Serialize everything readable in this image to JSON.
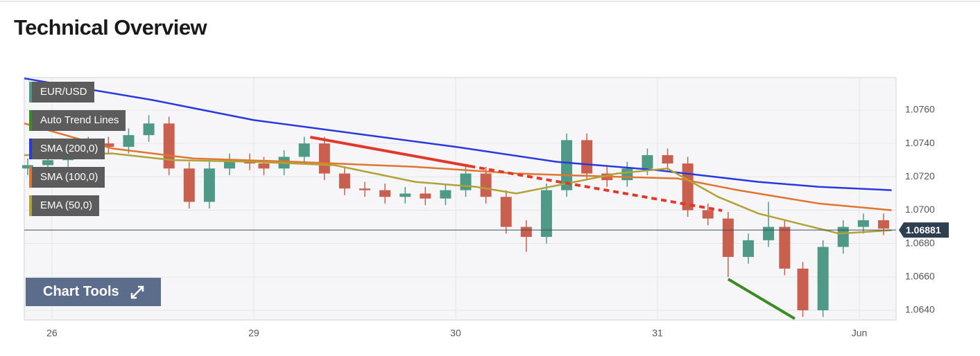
{
  "header": {
    "title": "Technical Overview"
  },
  "chart_tools": "Chart Tools",
  "chart_data": {
    "type": "candlestick",
    "name": "EUR/USD",
    "up_color": "#4f9a86",
    "down_color": "#c9604f",
    "grid": true,
    "xlim": [
      -0.137,
      4.182
    ],
    "xticks": [
      {
        "value": 0,
        "label": "26"
      },
      {
        "value": 1,
        "label": "29"
      },
      {
        "value": 2,
        "label": "30"
      },
      {
        "value": 3,
        "label": "31"
      },
      {
        "value": 4,
        "label": "Jun"
      }
    ],
    "ylim": [
      1.06342,
      1.07795
    ],
    "yticks": [
      {
        "value": 1.064,
        "label": "1.0640"
      },
      {
        "value": 1.066,
        "label": "1.0660"
      },
      {
        "value": 1.068,
        "label": "1.0680"
      },
      {
        "value": 1.07,
        "label": "1.0700"
      },
      {
        "value": 1.072,
        "label": "1.0720"
      },
      {
        "value": 1.074,
        "label": "1.0740"
      },
      {
        "value": 1.076,
        "label": "1.0760"
      }
    ],
    "x": [
      -0.12,
      -0.02,
      0.08,
      0.18,
      0.28,
      0.38,
      0.48,
      0.58,
      0.68,
      0.78,
      0.88,
      0.98,
      1.05,
      1.15,
      1.25,
      1.35,
      1.45,
      1.55,
      1.65,
      1.75,
      1.85,
      1.95,
      2.05,
      2.15,
      2.25,
      2.35,
      2.45,
      2.55,
      2.65,
      2.75,
      2.85,
      2.95,
      3.05,
      3.15,
      3.25,
      3.35,
      3.45,
      3.55,
      3.63,
      3.72,
      3.82,
      3.92,
      4.02,
      4.12
    ],
    "open": [
      1.0725,
      1.0727,
      1.073,
      1.0735,
      1.074,
      1.0738,
      1.0745,
      1.0752,
      1.0725,
      1.0705,
      1.0725,
      1.073,
      1.0728,
      1.0725,
      1.0732,
      1.074,
      1.0722,
      1.0713,
      1.0712,
      1.0708,
      1.071,
      1.0707,
      1.0712,
      1.0722,
      1.0708,
      1.069,
      1.0684,
      1.0712,
      1.0742,
      1.0722,
      1.0718,
      1.0725,
      1.0733,
      1.0728,
      1.07,
      1.0695,
      1.0672,
      1.0682,
      1.069,
      1.0665,
      1.064,
      1.0678,
      1.069,
      1.0694
    ],
    "high": [
      1.0731,
      1.0734,
      1.0739,
      1.0744,
      1.0744,
      1.0749,
      1.0757,
      1.0756,
      1.0729,
      1.0729,
      1.0734,
      1.0734,
      1.0732,
      1.0736,
      1.0744,
      1.0744,
      1.0726,
      1.0717,
      1.0716,
      1.0714,
      1.0714,
      1.0716,
      1.0726,
      1.0726,
      1.0712,
      1.0694,
      1.0716,
      1.0746,
      1.0746,
      1.0726,
      1.0729,
      1.0737,
      1.0737,
      1.0732,
      1.0704,
      1.0699,
      1.0686,
      1.0705,
      1.0694,
      1.0669,
      1.0682,
      1.0694,
      1.0698,
      1.0698
    ],
    "low": [
      1.0721,
      1.0723,
      1.0726,
      1.0731,
      1.0734,
      1.0734,
      1.0741,
      1.0721,
      1.0701,
      1.0701,
      1.0721,
      1.0724,
      1.0721,
      1.0721,
      1.0728,
      1.0718,
      1.0709,
      1.0708,
      1.0704,
      1.0704,
      1.0703,
      1.0703,
      1.0708,
      1.0704,
      1.0686,
      1.0675,
      1.068,
      1.0708,
      1.0718,
      1.0714,
      1.0714,
      1.0721,
      1.0724,
      1.0696,
      1.0691,
      1.066,
      1.0668,
      1.0678,
      1.0661,
      1.0636,
      1.0636,
      1.0674,
      1.0686,
      1.0685
    ],
    "close": [
      1.0727,
      1.073,
      1.0735,
      1.074,
      1.0738,
      1.0745,
      1.0752,
      1.0725,
      1.0705,
      1.0725,
      1.073,
      1.0728,
      1.0725,
      1.0732,
      1.074,
      1.0722,
      1.0713,
      1.0712,
      1.0708,
      1.071,
      1.0707,
      1.0712,
      1.0722,
      1.0708,
      1.069,
      1.0684,
      1.0712,
      1.0742,
      1.0722,
      1.0718,
      1.0725,
      1.0733,
      1.0728,
      1.07,
      1.0695,
      1.0672,
      1.0682,
      1.069,
      1.0665,
      1.064,
      1.0678,
      1.069,
      1.0694,
      1.0689
    ],
    "last_price": 1.06881,
    "trend_lines": {
      "name": "Auto Trend Lines",
      "color": "#3a8a25",
      "segments": [
        {
          "color": "#e3372a",
          "dashed": false,
          "x": [
            1.28,
            2.07
          ],
          "values": [
            1.07438,
            1.07264
          ]
        },
        {
          "color": "#e3372a",
          "dashed": true,
          "x": [
            2.07,
            3.32
          ],
          "values": [
            1.07264,
            1.06998
          ]
        },
        {
          "color": "#3a8a25",
          "dashed": false,
          "x": [
            3.35,
            3.68
          ],
          "values": [
            1.06587,
            1.0635
          ]
        }
      ]
    },
    "lines": [
      {
        "name": "SMA (200,0)",
        "color": "#2838e0",
        "x": [
          -0.137,
          0.5,
          1.0,
          1.5,
          2.0,
          2.5,
          3.0,
          3.5,
          3.8,
          4.16
        ],
        "values": [
          1.0779,
          1.0766,
          1.0754,
          1.0746,
          1.0738,
          1.0729,
          1.0724,
          1.0717,
          1.0714,
          1.0712
        ]
      },
      {
        "name": "SMA (100,0)",
        "color": "#e07530",
        "x": [
          -0.137,
          0.3,
          0.7,
          1.2,
          1.8,
          2.3,
          2.8,
          3.1,
          3.4,
          3.8,
          4.16
        ],
        "values": [
          1.0752,
          1.0737,
          1.0731,
          1.0729,
          1.0726,
          1.0722,
          1.072,
          1.0719,
          1.0712,
          1.0704,
          1.07
        ]
      },
      {
        "name": "EMA (50,0)",
        "color": "#b0a236",
        "x": [
          -0.137,
          0.3,
          0.6,
          1.0,
          1.4,
          1.8,
          2.1,
          2.3,
          2.55,
          2.8,
          3.05,
          3.3,
          3.5,
          3.7,
          3.9,
          4.16
        ],
        "values": [
          1.0733,
          1.0734,
          1.073,
          1.0729,
          1.0727,
          1.0717,
          1.0714,
          1.071,
          1.0716,
          1.0722,
          1.0725,
          1.0708,
          1.0698,
          1.0692,
          1.0686,
          1.0688
        ]
      }
    ]
  }
}
